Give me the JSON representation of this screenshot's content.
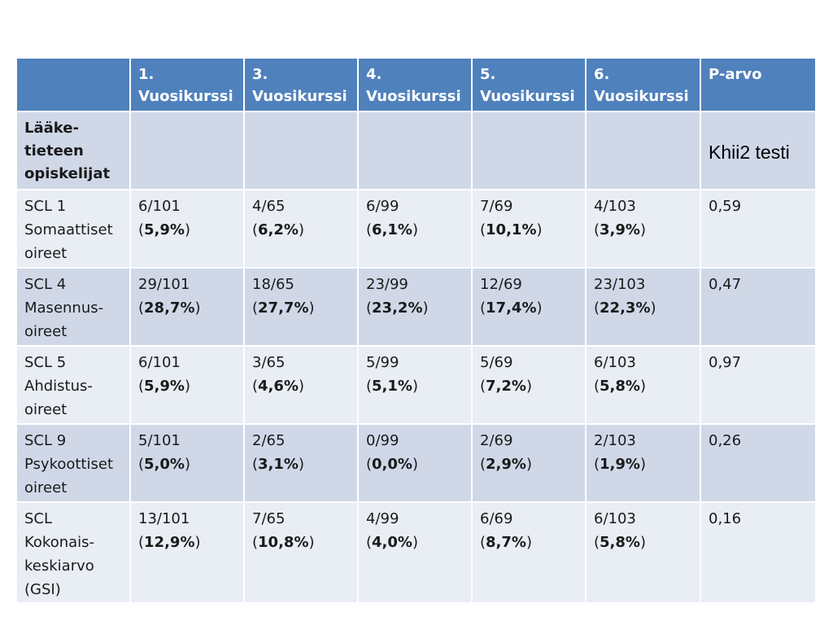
{
  "header": {
    "columns": [
      {
        "lines": [
          "",
          ""
        ]
      },
      {
        "lines": [
          "1.",
          "Vuosikurssi"
        ]
      },
      {
        "lines": [
          "3.",
          "Vuosikurssi"
        ]
      },
      {
        "lines": [
          "4.",
          "Vuosikurssi"
        ]
      },
      {
        "lines": [
          "5.",
          "Vuosikurssi"
        ]
      },
      {
        "lines": [
          "6.",
          "Vuosikurssi"
        ]
      },
      {
        "lines": [
          "P-arvo",
          ""
        ]
      }
    ]
  },
  "group_row": {
    "label_lines": [
      "Lääke-",
      "tieteen",
      "opiskelijat"
    ],
    "note": "Khii2 testi"
  },
  "rows": [
    {
      "label_lines": [
        "SCL 1",
        "Somaattiset",
        "oireet"
      ],
      "cells": [
        {
          "frac": "6/101",
          "pct": "5,9%"
        },
        {
          "frac": "4/65",
          "pct": "6,2%"
        },
        {
          "frac": "6/99",
          "pct": "6,1%"
        },
        {
          "frac": "7/69",
          "pct": "10,1%"
        },
        {
          "frac": "4/103",
          "pct": "3,9%"
        }
      ],
      "p": "0,59"
    },
    {
      "label_lines": [
        "SCL 4",
        "Masennus-",
        "oireet"
      ],
      "cells": [
        {
          "frac": "29/101",
          "pct": "28,7%"
        },
        {
          "frac": "18/65",
          "pct": "27,7%"
        },
        {
          "frac": "23/99",
          "pct": "23,2%"
        },
        {
          "frac": "12/69",
          "pct": "17,4%"
        },
        {
          "frac": "23/103",
          "pct": "22,3%"
        }
      ],
      "p": "0,47"
    },
    {
      "label_lines": [
        "SCL 5",
        "Ahdistus-",
        "oireet"
      ],
      "cells": [
        {
          "frac": "6/101",
          "pct": "5,9%"
        },
        {
          "frac": "3/65",
          "pct": "4,6%"
        },
        {
          "frac": "5/99",
          "pct": "5,1%"
        },
        {
          "frac": "5/69",
          "pct": "7,2%"
        },
        {
          "frac": "6/103",
          "pct": "5,8%"
        }
      ],
      "p": "0,97"
    },
    {
      "label_lines": [
        "SCL 9",
        "Psykoottiset",
        "oireet"
      ],
      "cells": [
        {
          "frac": "5/101",
          "pct": "5,0%"
        },
        {
          "frac": "2/65",
          "pct": "3,1%"
        },
        {
          "frac": "0/99",
          "pct": "0,0%"
        },
        {
          "frac": "2/69",
          "pct": "2,9%"
        },
        {
          "frac": "2/103",
          "pct": "1,9%"
        }
      ],
      "p": "0,26"
    },
    {
      "label_lines": [
        "SCL",
        "Kokonais-",
        "keskiarvo",
        "(GSI)"
      ],
      "cells": [
        {
          "frac": "13/101",
          "pct": "12,9%"
        },
        {
          "frac": "7/65",
          "pct": "10,8%"
        },
        {
          "frac": "4/99",
          "pct": "4,0%"
        },
        {
          "frac": "6/69",
          "pct": "8,7%"
        },
        {
          "frac": "6/103",
          "pct": "5,8%"
        }
      ],
      "p": "0,16"
    }
  ]
}
